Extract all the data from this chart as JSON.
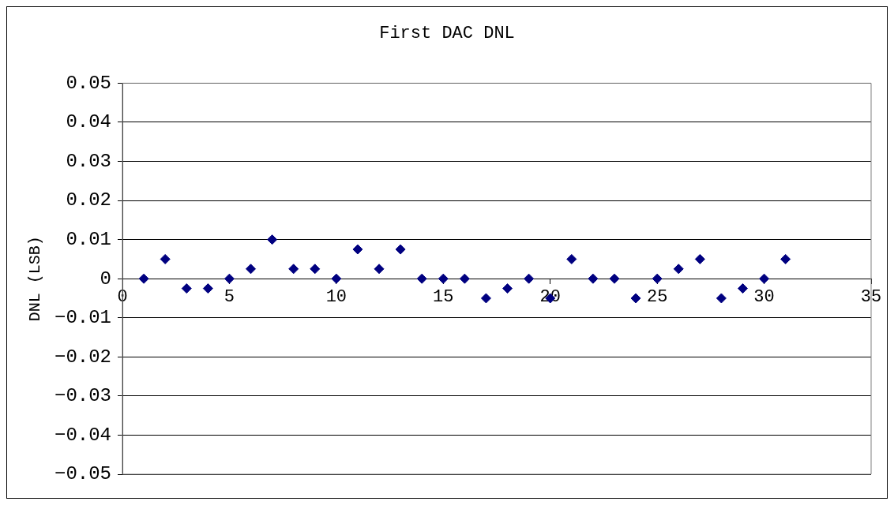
{
  "chart_data": {
    "type": "scatter",
    "title": "First DAC DNL",
    "ylabel": "DNL (LSB)",
    "x": [
      1,
      2,
      3,
      4,
      5,
      6,
      7,
      8,
      9,
      10,
      11,
      12,
      13,
      14,
      15,
      16,
      17,
      18,
      19,
      20,
      21,
      22,
      23,
      24,
      25,
      26,
      27,
      28,
      29,
      30,
      31
    ],
    "series": [
      {
        "color": "#000080",
        "values": [
          0,
          0.005,
          -0.0025,
          -0.0025,
          0,
          0.0025,
          0.01,
          0.0025,
          0.0025,
          0,
          0.0075,
          0.0025,
          0.0075,
          0,
          0,
          0,
          -0.005,
          -0.0025,
          0,
          -0.005,
          0.005,
          0,
          0,
          -0.005,
          0,
          0.0025,
          0.005,
          -0.005,
          -0.0025,
          0,
          0.005
        ]
      }
    ],
    "xlim": [
      0,
      35
    ],
    "xticks": [
      0,
      5,
      10,
      15,
      20,
      25,
      30,
      35
    ],
    "ylim": [
      -0.05,
      0.05
    ],
    "yticks": [
      -0.05,
      -0.04,
      -0.03,
      -0.02,
      -0.01,
      0,
      0.01,
      0.02,
      0.03,
      0.04,
      0.05
    ],
    "grid": "y",
    "legend": false,
    "marker": "diamond"
  }
}
